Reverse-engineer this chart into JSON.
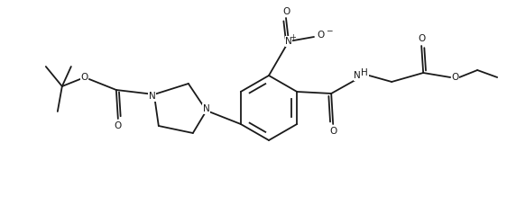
{
  "background_color": "#ffffff",
  "line_color": "#1a1a1a",
  "lw": 1.3,
  "figsize": [
    5.62,
    2.38
  ],
  "dpi": 100,
  "xlim": [
    0,
    562
  ],
  "ylim": [
    0,
    238
  ]
}
